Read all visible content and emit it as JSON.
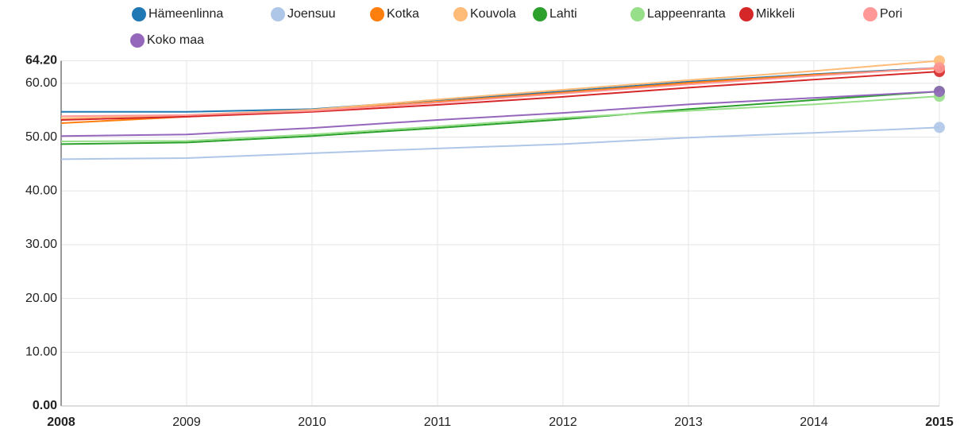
{
  "chart_data": {
    "type": "line",
    "x": [
      2008,
      2009,
      2010,
      2011,
      2012,
      2013,
      2014,
      2015
    ],
    "series": [
      {
        "name": "Hämeenlinna",
        "color": "#1f77b4",
        "values": [
          54.7,
          54.7,
          55.2,
          56.9,
          58.5,
          60.3,
          61.7,
          62.9
        ]
      },
      {
        "name": "Joensuu",
        "color": "#aec7e8",
        "values": [
          45.9,
          46.1,
          47.0,
          47.9,
          48.7,
          49.9,
          50.8,
          51.8
        ]
      },
      {
        "name": "Kotka",
        "color": "#ff7f0e",
        "values": [
          52.6,
          53.8,
          54.9,
          56.6,
          58.3,
          60.1,
          61.6,
          62.8
        ]
      },
      {
        "name": "Kouvola",
        "color": "#ffbb78",
        "values": [
          53.5,
          54.1,
          55.1,
          57.0,
          58.8,
          60.6,
          62.3,
          64.2
        ]
      },
      {
        "name": "Lahti",
        "color": "#2ca02c",
        "values": [
          48.7,
          49.0,
          50.2,
          51.7,
          53.3,
          55.2,
          56.9,
          58.5
        ]
      },
      {
        "name": "Lappeenranta",
        "color": "#98df8a",
        "values": [
          49.2,
          49.3,
          50.5,
          52.0,
          53.6,
          54.9,
          56.1,
          57.6
        ]
      },
      {
        "name": "Mikkeli",
        "color": "#d62728",
        "values": [
          53.2,
          53.8,
          54.7,
          56.0,
          57.5,
          59.2,
          60.7,
          62.2
        ]
      },
      {
        "name": "Pori",
        "color": "#ff9896",
        "values": [
          53.9,
          54.1,
          54.9,
          56.4,
          58.1,
          59.8,
          61.4,
          62.9
        ]
      },
      {
        "name": "Koko maa",
        "color": "#9467bd",
        "values": [
          50.2,
          50.5,
          51.7,
          53.2,
          54.5,
          56.1,
          57.3,
          58.5
        ]
      }
    ],
    "xlim": [
      2008,
      2015
    ],
    "xticks": [
      2008,
      2009,
      2010,
      2011,
      2012,
      2013,
      2014,
      2015
    ],
    "ylim": [
      0,
      64.2
    ],
    "yticks": [
      {
        "value": 0,
        "label": "0.00"
      },
      {
        "value": 10,
        "label": "10.00"
      },
      {
        "value": 20,
        "label": "20.00"
      },
      {
        "value": 30,
        "label": "30.00"
      },
      {
        "value": 40,
        "label": "40.00"
      },
      {
        "value": 50,
        "label": "50.00"
      },
      {
        "value": 60,
        "label": "60.00"
      },
      {
        "value": 64.2,
        "label": "64.20"
      }
    ],
    "grid": true,
    "legend": "top"
  }
}
